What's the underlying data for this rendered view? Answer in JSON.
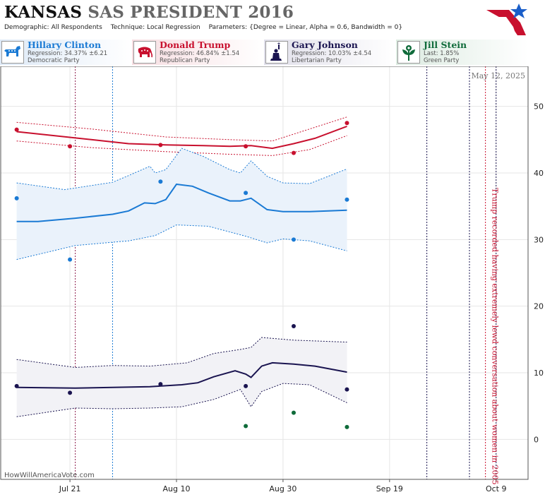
{
  "header": {
    "title_state": "KANSAS",
    "title_rest": "SAS PRESIDENT 2016",
    "demographic_label": "Demographic:",
    "demographic_value": "All Respondents",
    "technique_label": "Technique:",
    "technique_value": "Local Regression",
    "parameters_label": "Parameters:",
    "parameters_value": "{Degree = Linear, Alpha = 0.6, Bandwidth = 0}"
  },
  "candidates": [
    {
      "name": "Hillary Clinton",
      "stat": "Regression: 34.37% ±6.21",
      "party": "Democratic Party",
      "color": "#1a7ad4",
      "icon": "donkey-icon"
    },
    {
      "name": "Donald Trump",
      "stat": "Regression: 46.84% ±1.54",
      "party": "Republican Party",
      "color": "#c8102e",
      "icon": "elephant-icon"
    },
    {
      "name": "Gary Johnson",
      "stat": "Regression: 10.03% ±4.54",
      "party": "Libertarian Party",
      "color": "#1a1450",
      "icon": "liberty-icon"
    },
    {
      "name": "Jill Stein",
      "stat": "Last: 1.85%",
      "party": "Green Party",
      "color": "#0f6b3a",
      "icon": "flower-icon"
    }
  ],
  "chart_data": {
    "type": "scatter",
    "date_label": "May 12, 2025",
    "xlabel": "",
    "ylabel": "",
    "x_range": [
      "2016-07-08",
      "2016-10-15"
    ],
    "ylim": [
      -6,
      56
    ],
    "y_ticks": [
      0,
      10,
      20,
      30,
      40,
      50
    ],
    "x_ticks": [
      {
        "date": "2016-07-21",
        "label": "Jul 21"
      },
      {
        "date": "2016-08-10",
        "label": "Aug 10"
      },
      {
        "date": "2016-08-30",
        "label": "Aug 30"
      },
      {
        "date": "2016-09-19",
        "label": "Sep 19"
      },
      {
        "date": "2016-10-09",
        "label": "Oct 9"
      }
    ],
    "grid": true,
    "event_lines": [
      {
        "date": "2016-07-22",
        "color": "#8b1a4a"
      },
      {
        "date": "2016-07-29",
        "color": "#1a7ad4"
      },
      {
        "date": "2016-09-26",
        "color": "#1a1450"
      },
      {
        "date": "2016-10-04",
        "color": "#1a1450"
      },
      {
        "date": "2016-10-07",
        "color": "#c8102e"
      },
      {
        "date": "2016-10-09",
        "color": "#1a1450"
      }
    ],
    "annotation": {
      "date": "2016-10-07",
      "text": "Trump recorded having extremely lewd conversation about women in 2005",
      "color": "#c8102e"
    },
    "series": [
      {
        "name": "Donald Trump",
        "color": "#c8102e",
        "band_fill": "none",
        "points": [
          [
            "2016-07-11",
            46.5
          ],
          [
            "2016-07-21",
            44.0
          ],
          [
            "2016-08-07",
            44.2
          ],
          [
            "2016-08-23",
            44.0
          ],
          [
            "2016-09-01",
            43.0
          ],
          [
            "2016-09-11",
            47.5
          ]
        ],
        "trend": [
          [
            "2016-07-11",
            46.2
          ],
          [
            "2016-07-18",
            45.6
          ],
          [
            "2016-07-25",
            45.0
          ],
          [
            "2016-08-01",
            44.4
          ],
          [
            "2016-08-08",
            44.2
          ],
          [
            "2016-08-15",
            44.1
          ],
          [
            "2016-08-20",
            44.0
          ],
          [
            "2016-08-24",
            44.1
          ],
          [
            "2016-08-28",
            43.7
          ],
          [
            "2016-09-01",
            44.4
          ],
          [
            "2016-09-05",
            45.2
          ],
          [
            "2016-09-11",
            47.0
          ]
        ],
        "upper": [
          [
            "2016-07-11",
            47.6
          ],
          [
            "2016-07-25",
            46.6
          ],
          [
            "2016-08-08",
            45.4
          ],
          [
            "2016-08-20",
            45.0
          ],
          [
            "2016-08-28",
            44.8
          ],
          [
            "2016-09-04",
            46.6
          ],
          [
            "2016-09-11",
            48.4
          ]
        ],
        "lower": [
          [
            "2016-07-11",
            44.8
          ],
          [
            "2016-07-25",
            43.8
          ],
          [
            "2016-08-08",
            43.2
          ],
          [
            "2016-08-20",
            42.8
          ],
          [
            "2016-08-28",
            42.6
          ],
          [
            "2016-09-04",
            43.5
          ],
          [
            "2016-09-11",
            45.6
          ]
        ]
      },
      {
        "name": "Hillary Clinton",
        "color": "#1a7ad4",
        "band_fill": "#eaf2fb",
        "points": [
          [
            "2016-07-11",
            36.2
          ],
          [
            "2016-07-21",
            27.0
          ],
          [
            "2016-08-07",
            38.7
          ],
          [
            "2016-08-23",
            37.0
          ],
          [
            "2016-09-01",
            30.0
          ],
          [
            "2016-09-11",
            36.0
          ]
        ],
        "trend": [
          [
            "2016-07-11",
            32.7
          ],
          [
            "2016-07-15",
            32.7
          ],
          [
            "2016-07-22",
            33.2
          ],
          [
            "2016-07-29",
            33.8
          ],
          [
            "2016-08-01",
            34.3
          ],
          [
            "2016-08-04",
            35.5
          ],
          [
            "2016-08-06",
            35.4
          ],
          [
            "2016-08-08",
            36.0
          ],
          [
            "2016-08-10",
            38.3
          ],
          [
            "2016-08-13",
            38.0
          ],
          [
            "2016-08-16",
            37.0
          ],
          [
            "2016-08-20",
            35.8
          ],
          [
            "2016-08-22",
            35.8
          ],
          [
            "2016-08-24",
            36.2
          ],
          [
            "2016-08-27",
            34.5
          ],
          [
            "2016-08-30",
            34.2
          ],
          [
            "2016-09-04",
            34.2
          ],
          [
            "2016-09-11",
            34.4
          ]
        ],
        "upper": [
          [
            "2016-07-11",
            38.5
          ],
          [
            "2016-07-20",
            37.5
          ],
          [
            "2016-07-29",
            38.6
          ],
          [
            "2016-08-01",
            39.6
          ],
          [
            "2016-08-05",
            41.0
          ],
          [
            "2016-08-06",
            40.0
          ],
          [
            "2016-08-08",
            40.5
          ],
          [
            "2016-08-11",
            43.7
          ],
          [
            "2016-08-15",
            42.5
          ],
          [
            "2016-08-20",
            40.5
          ],
          [
            "2016-08-22",
            40.0
          ],
          [
            "2016-08-24",
            41.8
          ],
          [
            "2016-08-27",
            39.5
          ],
          [
            "2016-08-30",
            38.5
          ],
          [
            "2016-09-04",
            38.4
          ],
          [
            "2016-09-11",
            40.6
          ]
        ],
        "lower": [
          [
            "2016-07-11",
            27.0
          ],
          [
            "2016-07-22",
            29.1
          ],
          [
            "2016-07-29",
            29.6
          ],
          [
            "2016-08-01",
            29.8
          ],
          [
            "2016-08-06",
            30.6
          ],
          [
            "2016-08-10",
            32.2
          ],
          [
            "2016-08-16",
            32.0
          ],
          [
            "2016-08-23",
            30.5
          ],
          [
            "2016-08-27",
            29.5
          ],
          [
            "2016-08-30",
            30.1
          ],
          [
            "2016-09-04",
            29.8
          ],
          [
            "2016-09-11",
            28.3
          ]
        ]
      },
      {
        "name": "Gary Johnson",
        "color": "#1a1450",
        "band_fill": "#f2f2f6",
        "points": [
          [
            "2016-07-11",
            8.0
          ],
          [
            "2016-07-21",
            7.0
          ],
          [
            "2016-08-07",
            8.3
          ],
          [
            "2016-08-23",
            8.0
          ],
          [
            "2016-09-01",
            17.0
          ],
          [
            "2016-09-11",
            7.5
          ]
        ],
        "trend": [
          [
            "2016-07-11",
            7.8
          ],
          [
            "2016-07-22",
            7.7
          ],
          [
            "2016-07-29",
            7.8
          ],
          [
            "2016-08-05",
            7.9
          ],
          [
            "2016-08-11",
            8.2
          ],
          [
            "2016-08-14",
            8.5
          ],
          [
            "2016-08-17",
            9.4
          ],
          [
            "2016-08-21",
            10.3
          ],
          [
            "2016-08-23",
            9.8
          ],
          [
            "2016-08-24",
            9.3
          ],
          [
            "2016-08-26",
            11.0
          ],
          [
            "2016-08-28",
            11.5
          ],
          [
            "2016-09-01",
            11.3
          ],
          [
            "2016-09-05",
            11.0
          ],
          [
            "2016-09-11",
            10.1
          ]
        ],
        "upper": [
          [
            "2016-07-11",
            12.0
          ],
          [
            "2016-07-22",
            10.8
          ],
          [
            "2016-07-29",
            11.1
          ],
          [
            "2016-08-05",
            11.0
          ],
          [
            "2016-08-12",
            11.5
          ],
          [
            "2016-08-17",
            12.9
          ],
          [
            "2016-08-22",
            13.5
          ],
          [
            "2016-08-24",
            13.8
          ],
          [
            "2016-08-26",
            15.3
          ],
          [
            "2016-09-01",
            14.9
          ],
          [
            "2016-09-11",
            14.6
          ]
        ],
        "lower": [
          [
            "2016-07-11",
            3.4
          ],
          [
            "2016-07-22",
            4.7
          ],
          [
            "2016-07-29",
            4.6
          ],
          [
            "2016-08-05",
            4.7
          ],
          [
            "2016-08-11",
            4.9
          ],
          [
            "2016-08-17",
            6.0
          ],
          [
            "2016-08-22",
            7.5
          ],
          [
            "2016-08-24",
            4.9
          ],
          [
            "2016-08-26",
            7.2
          ],
          [
            "2016-08-30",
            8.4
          ],
          [
            "2016-09-04",
            8.2
          ],
          [
            "2016-09-11",
            5.5
          ]
        ]
      },
      {
        "name": "Jill Stein",
        "color": "#0f6b3a",
        "band_fill": "none",
        "points": [
          [
            "2016-08-23",
            2.0
          ],
          [
            "2016-09-01",
            4.0
          ],
          [
            "2016-09-11",
            1.85
          ]
        ],
        "trend": [],
        "upper": [],
        "lower": []
      }
    ]
  },
  "footer": {
    "credit": "HowWillAmericaVote.com"
  }
}
